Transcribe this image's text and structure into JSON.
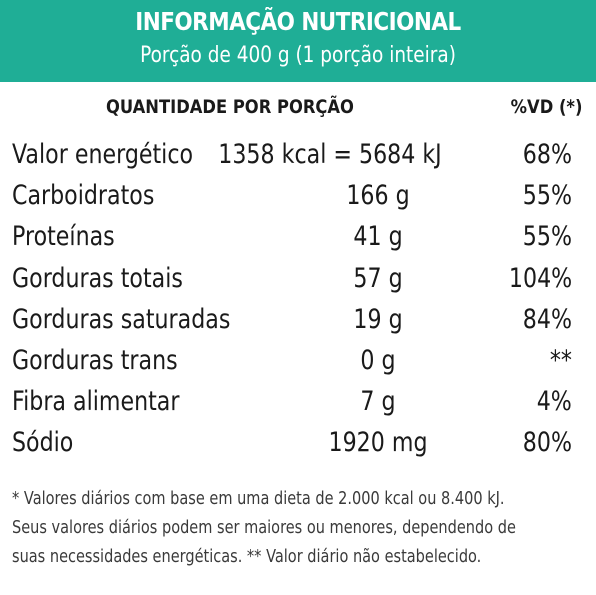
{
  "header": {
    "title": "INFORMAÇÃO NUTRICIONAL",
    "subtitle": "Porção de 400 g (1 porção inteira)",
    "color": "#1fae96"
  },
  "table": {
    "col_quantity": "QUANTIDADE POR PORÇÃO",
    "col_vd": "%VD (*)",
    "rows": [
      {
        "name": "Valor energético",
        "amount": "1358 kcal = 5684 kJ",
        "vd": "68%"
      },
      {
        "name": "Carboidratos",
        "amount": "166 g",
        "vd": "55%"
      },
      {
        "name": "Proteínas",
        "amount": "41 g",
        "vd": "55%"
      },
      {
        "name": "Gorduras totais",
        "amount": "57 g",
        "vd": "104%"
      },
      {
        "name": "Gorduras saturadas",
        "amount": "19 g",
        "vd": "84%"
      },
      {
        "name": "Gorduras trans",
        "amount": "0 g",
        "vd": "**"
      },
      {
        "name": "Fibra alimentar",
        "amount": "7 g",
        "vd": "4%"
      },
      {
        "name": "Sódio",
        "amount": "1920 mg",
        "vd": "80%"
      }
    ]
  },
  "footnote": {
    "line1": "* Valores diários com base em uma dieta de 2.000 kcal ou 8.400 kJ.",
    "line2": "Seus valores diários podem ser maiores ou menores, dependendo de",
    "line3": "suas necessidades energéticas. ** Valor diário não estabelecido."
  }
}
